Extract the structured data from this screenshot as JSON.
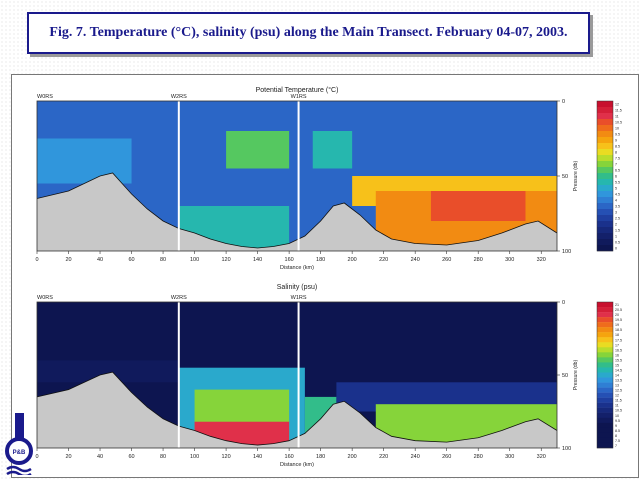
{
  "title": "Fig. 7. Temperature (°C), salinity (psu) along the Main Transect. February 04-07, 2003.",
  "logo_text": "P&B",
  "colors": {
    "title_blue": "#1a1a8c",
    "seabed": "#c8c8c8",
    "station_line": "#ffffff"
  },
  "chart_data": [
    {
      "type": "heatmap",
      "title": "Potential Temperature (°C)",
      "xlabel": "Distance (km)",
      "ylabel": "Pressure (db)",
      "xlim": [
        0,
        330
      ],
      "ylim": [
        0,
        100
      ],
      "x_ticks": [
        "0",
        "20",
        "40",
        "60",
        "80",
        "100",
        "120",
        "140",
        "160",
        "180",
        "200",
        "220",
        "240",
        "260",
        "280",
        "300",
        "320"
      ],
      "y_ticks": [
        "0",
        "50",
        "100"
      ],
      "stations": [
        {
          "name": "W0RS",
          "distance": 0
        },
        {
          "name": "W2RS",
          "distance": 90
        },
        {
          "name": "W1RS",
          "distance": 166
        }
      ],
      "colorbar": {
        "labels": [
          "12",
          "11.5",
          "11",
          "10.5",
          "10",
          "9.5",
          "9",
          "8.5",
          "8",
          "7.5",
          "7",
          "6.5",
          "6",
          "5.5",
          "5",
          "4.5",
          "4",
          "3.5",
          "3",
          "2.5",
          "2",
          "1.5",
          "1",
          "0.5",
          "0"
        ],
        "colors": [
          "#c8102e",
          "#d41f38",
          "#e0304a",
          "#e94e2a",
          "#ef6c1c",
          "#f28b12",
          "#f5a40e",
          "#f7c11a",
          "#e9dc22",
          "#b9dd2c",
          "#86d43a",
          "#55c860",
          "#32bd8a",
          "#26b7ae",
          "#2aa9cc",
          "#3096dc",
          "#2f7fd4",
          "#2b66c6",
          "#2550b4",
          "#1f3fa0",
          "#1a318c",
          "#16287a",
          "#13206a",
          "#101a5c",
          "#0d1550"
        ]
      },
      "bottom_depth": [
        {
          "x": 0,
          "depth": 65
        },
        {
          "x": 20,
          "depth": 60
        },
        {
          "x": 40,
          "depth": 50
        },
        {
          "x": 48,
          "depth": 48
        },
        {
          "x": 60,
          "depth": 62
        },
        {
          "x": 70,
          "depth": 72
        },
        {
          "x": 80,
          "depth": 80
        },
        {
          "x": 90,
          "depth": 85
        },
        {
          "x": 100,
          "depth": 88
        },
        {
          "x": 110,
          "depth": 92
        },
        {
          "x": 120,
          "depth": 95
        },
        {
          "x": 130,
          "depth": 97
        },
        {
          "x": 140,
          "depth": 98
        },
        {
          "x": 150,
          "depth": 97
        },
        {
          "x": 160,
          "depth": 95
        },
        {
          "x": 170,
          "depth": 90
        },
        {
          "x": 180,
          "depth": 80
        },
        {
          "x": 188,
          "depth": 70
        },
        {
          "x": 195,
          "depth": 68
        },
        {
          "x": 205,
          "depth": 76
        },
        {
          "x": 215,
          "depth": 86
        },
        {
          "x": 225,
          "depth": 92
        },
        {
          "x": 240,
          "depth": 95
        },
        {
          "x": 260,
          "depth": 96
        },
        {
          "x": 280,
          "depth": 93
        },
        {
          "x": 295,
          "depth": 88
        },
        {
          "x": 310,
          "depth": 82
        },
        {
          "x": 318,
          "depth": 80
        },
        {
          "x": 330,
          "depth": 88
        }
      ],
      "regions": [
        {
          "x0": 0,
          "x1": 330,
          "d0": 0,
          "d1": 100,
          "value": 3.5
        },
        {
          "x0": 0,
          "x1": 60,
          "d0": 25,
          "d1": 55,
          "value": 4.5
        },
        {
          "x0": 90,
          "x1": 160,
          "d0": 70,
          "d1": 100,
          "value": 5.5
        },
        {
          "x0": 120,
          "x1": 160,
          "d0": 20,
          "d1": 45,
          "value": 6.5
        },
        {
          "x0": 175,
          "x1": 200,
          "d0": 20,
          "d1": 45,
          "value": 5.5
        },
        {
          "x0": 200,
          "x1": 330,
          "d0": 50,
          "d1": 70,
          "value": 8.5
        },
        {
          "x0": 215,
          "x1": 330,
          "d0": 60,
          "d1": 100,
          "value": 9.5
        },
        {
          "x0": 250,
          "x1": 310,
          "d0": 60,
          "d1": 80,
          "value": 10.5
        }
      ]
    },
    {
      "type": "heatmap",
      "title": "Salinity (psu)",
      "xlabel": "Distance (km)",
      "ylabel": "Pressure (db)",
      "xlim": [
        0,
        330
      ],
      "ylim": [
        0,
        100
      ],
      "x_ticks": [
        "0",
        "20",
        "40",
        "60",
        "80",
        "100",
        "120",
        "140",
        "160",
        "180",
        "200",
        "220",
        "240",
        "260",
        "280",
        "300",
        "320"
      ],
      "y_ticks": [
        "0",
        "50",
        "100"
      ],
      "stations": [
        {
          "name": "W0RS",
          "distance": 0
        },
        {
          "name": "W2RS",
          "distance": 90
        },
        {
          "name": "W1RS",
          "distance": 166
        }
      ],
      "colorbar": {
        "labels": [
          "21",
          "20.5",
          "20",
          "19.5",
          "19",
          "18.5",
          "18",
          "17.5",
          "17",
          "16.5",
          "16",
          "15.5",
          "15",
          "14.5",
          "14",
          "13.5",
          "13",
          "12.5",
          "12",
          "11.5",
          "11",
          "10.5",
          "10",
          "9.5",
          "9",
          "8.5",
          "8",
          "7.5",
          "7"
        ],
        "colors": [
          "#c8102e",
          "#d41f38",
          "#e0304a",
          "#e94e2a",
          "#ef6c1c",
          "#f28b12",
          "#f5a40e",
          "#f7c11a",
          "#e9dc22",
          "#b9dd2c",
          "#86d43a",
          "#55c860",
          "#32bd8a",
          "#26b7ae",
          "#2aa9cc",
          "#3096dc",
          "#2f7fd4",
          "#2b66c6",
          "#2550b4",
          "#1f3fa0",
          "#1a318c",
          "#16287a",
          "#13206a",
          "#101a5c",
          "#0d1550",
          "#0d1550",
          "#0d1550",
          "#0d1550",
          "#0d1550"
        ]
      },
      "bottom_depth": [
        {
          "x": 0,
          "depth": 65
        },
        {
          "x": 20,
          "depth": 60
        },
        {
          "x": 40,
          "depth": 50
        },
        {
          "x": 48,
          "depth": 48
        },
        {
          "x": 60,
          "depth": 62
        },
        {
          "x": 70,
          "depth": 72
        },
        {
          "x": 80,
          "depth": 80
        },
        {
          "x": 90,
          "depth": 85
        },
        {
          "x": 100,
          "depth": 88
        },
        {
          "x": 110,
          "depth": 92
        },
        {
          "x": 120,
          "depth": 95
        },
        {
          "x": 130,
          "depth": 97
        },
        {
          "x": 140,
          "depth": 98
        },
        {
          "x": 150,
          "depth": 97
        },
        {
          "x": 160,
          "depth": 95
        },
        {
          "x": 170,
          "depth": 90
        },
        {
          "x": 180,
          "depth": 80
        },
        {
          "x": 188,
          "depth": 70
        },
        {
          "x": 195,
          "depth": 68
        },
        {
          "x": 205,
          "depth": 76
        },
        {
          "x": 215,
          "depth": 86
        },
        {
          "x": 225,
          "depth": 92
        },
        {
          "x": 240,
          "depth": 95
        },
        {
          "x": 260,
          "depth": 96
        },
        {
          "x": 280,
          "depth": 93
        },
        {
          "x": 295,
          "depth": 88
        },
        {
          "x": 310,
          "depth": 82
        },
        {
          "x": 318,
          "depth": 80
        },
        {
          "x": 330,
          "depth": 88
        }
      ],
      "regions": [
        {
          "x0": 0,
          "x1": 330,
          "d0": 0,
          "d1": 100,
          "value": 8
        },
        {
          "x0": 0,
          "x1": 90,
          "d0": 40,
          "d1": 55,
          "value": 9.5
        },
        {
          "x0": 90,
          "x1": 170,
          "d0": 45,
          "d1": 100,
          "value": 14
        },
        {
          "x0": 100,
          "x1": 160,
          "d0": 60,
          "d1": 100,
          "value": 16
        },
        {
          "x0": 100,
          "x1": 160,
          "d0": 82,
          "d1": 100,
          "value": 20
        },
        {
          "x0": 170,
          "x1": 190,
          "d0": 65,
          "d1": 90,
          "value": 15
        },
        {
          "x0": 190,
          "x1": 330,
          "d0": 55,
          "d1": 75,
          "value": 11
        },
        {
          "x0": 215,
          "x1": 330,
          "d0": 70,
          "d1": 100,
          "value": 16
        }
      ]
    }
  ]
}
